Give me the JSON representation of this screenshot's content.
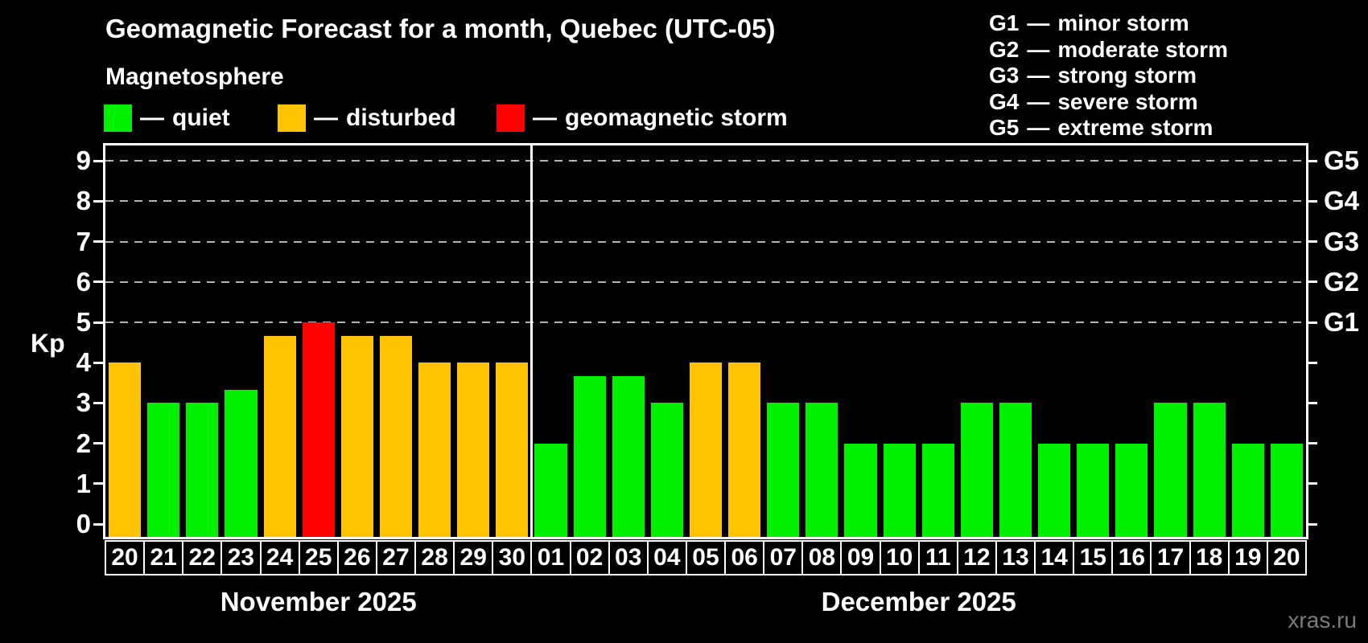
{
  "page": {
    "background": "#000000",
    "watermark": "xras.ru"
  },
  "chars": {
    "dash": "—"
  },
  "header": {
    "title": "Geomagnetic Forecast for a month, Quebec (UTC-05)",
    "subtitle": "Magnetosphere"
  },
  "legend": {
    "items": [
      {
        "label": "quiet",
        "status": "quiet"
      },
      {
        "label": "disturbed",
        "status": "disturbed"
      },
      {
        "label": "geomagnetic storm",
        "status": "storm"
      }
    ]
  },
  "g_scale_legend": {
    "items": [
      {
        "code": "G1",
        "desc": "minor storm"
      },
      {
        "code": "G2",
        "desc": "moderate storm"
      },
      {
        "code": "G3",
        "desc": "strong storm"
      },
      {
        "code": "G4",
        "desc": "severe storm"
      },
      {
        "code": "G5",
        "desc": "extreme storm"
      }
    ]
  },
  "chart_data": {
    "type": "bar",
    "title": "Geomagnetic Forecast for a month, Quebec (UTC-05)",
    "subtitle": "Magnetosphere",
    "ylabel": "Kp",
    "ylim": [
      0,
      9.5
    ],
    "yticks": [
      0,
      1,
      2,
      3,
      4,
      5,
      6,
      7,
      8,
      9
    ],
    "gridlines_kp": [
      5,
      6,
      7,
      8,
      9
    ],
    "grid_color": "#b3b3b3",
    "right_axis": [
      {
        "kp": 5,
        "label": "G1"
      },
      {
        "kp": 6,
        "label": "G2"
      },
      {
        "kp": 7,
        "label": "G3"
      },
      {
        "kp": 8,
        "label": "G4"
      },
      {
        "kp": 9,
        "label": "G5"
      }
    ],
    "status_colors": {
      "quiet": "#00f000",
      "disturbed": "#ffc300",
      "storm": "#ff0000"
    },
    "months": [
      {
        "label": "November 2025",
        "bars": [
          {
            "day": "20",
            "kp": 4.0,
            "status": "disturbed"
          },
          {
            "day": "21",
            "kp": 3.0,
            "status": "quiet"
          },
          {
            "day": "22",
            "kp": 3.0,
            "status": "quiet"
          },
          {
            "day": "23",
            "kp": 3.33,
            "status": "quiet"
          },
          {
            "day": "24",
            "kp": 4.67,
            "status": "disturbed"
          },
          {
            "day": "25",
            "kp": 5.0,
            "status": "storm"
          },
          {
            "day": "26",
            "kp": 4.67,
            "status": "disturbed"
          },
          {
            "day": "27",
            "kp": 4.67,
            "status": "disturbed"
          },
          {
            "day": "28",
            "kp": 4.0,
            "status": "disturbed"
          },
          {
            "day": "29",
            "kp": 4.0,
            "status": "disturbed"
          },
          {
            "day": "30",
            "kp": 4.0,
            "status": "disturbed"
          }
        ]
      },
      {
        "label": "December 2025",
        "bars": [
          {
            "day": "01",
            "kp": 2.0,
            "status": "quiet"
          },
          {
            "day": "02",
            "kp": 3.67,
            "status": "quiet"
          },
          {
            "day": "03",
            "kp": 3.67,
            "status": "quiet"
          },
          {
            "day": "04",
            "kp": 3.0,
            "status": "quiet"
          },
          {
            "day": "05",
            "kp": 4.0,
            "status": "disturbed"
          },
          {
            "day": "06",
            "kp": 4.0,
            "status": "disturbed"
          },
          {
            "day": "07",
            "kp": 3.0,
            "status": "quiet"
          },
          {
            "day": "08",
            "kp": 3.0,
            "status": "quiet"
          },
          {
            "day": "09",
            "kp": 2.0,
            "status": "quiet"
          },
          {
            "day": "10",
            "kp": 2.0,
            "status": "quiet"
          },
          {
            "day": "11",
            "kp": 2.0,
            "status": "quiet"
          },
          {
            "day": "12",
            "kp": 3.0,
            "status": "quiet"
          },
          {
            "day": "13",
            "kp": 3.0,
            "status": "quiet"
          },
          {
            "day": "14",
            "kp": 2.0,
            "status": "quiet"
          },
          {
            "day": "15",
            "kp": 2.0,
            "status": "quiet"
          },
          {
            "day": "16",
            "kp": 2.0,
            "status": "quiet"
          },
          {
            "day": "17",
            "kp": 3.0,
            "status": "quiet"
          },
          {
            "day": "18",
            "kp": 3.0,
            "status": "quiet"
          },
          {
            "day": "19",
            "kp": 2.0,
            "status": "quiet"
          },
          {
            "day": "20",
            "kp": 2.0,
            "status": "quiet"
          }
        ]
      }
    ]
  }
}
